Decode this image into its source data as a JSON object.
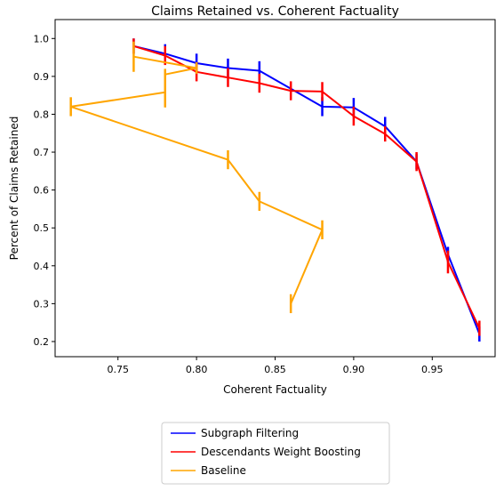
{
  "chart_data": {
    "type": "line",
    "title": "Claims Retained vs. Coherent Factuality",
    "xlabel": "Coherent Factuality",
    "ylabel": "Percent of Claims Retained",
    "xlim": [
      0.71,
      0.99
    ],
    "ylim": [
      0.16,
      1.05
    ],
    "xticks": [
      0.75,
      0.8,
      0.85,
      0.9,
      0.95
    ],
    "xtick_labels": [
      "0.75",
      "0.80",
      "0.85",
      "0.90",
      "0.95"
    ],
    "yticks": [
      0.2,
      0.3,
      0.4,
      0.5,
      0.6,
      0.7,
      0.8,
      0.9,
      1.0
    ],
    "ytick_labels": [
      "0.2",
      "0.3",
      "0.4",
      "0.5",
      "0.6",
      "0.7",
      "0.8",
      "0.9",
      "1.0"
    ],
    "grid": false,
    "legend_position": "below-center",
    "series": [
      {
        "name": "Subgraph Filtering",
        "color": "#0000ff",
        "x": [
          0.76,
          0.78,
          0.8,
          0.82,
          0.84,
          0.88,
          0.9,
          0.92,
          0.94,
          0.96,
          0.98
        ],
        "y": [
          0.98,
          0.96,
          0.935,
          0.922,
          0.915,
          0.82,
          0.818,
          0.768,
          0.675,
          0.43,
          0.22
        ],
        "err": [
          0.02,
          0.025,
          0.025,
          0.025,
          0.025,
          0.025,
          0.025,
          0.025,
          0.02,
          0.02,
          0.02
        ]
      },
      {
        "name": "Descendants Weight Boosting",
        "color": "#ff0000",
        "x": [
          0.76,
          0.78,
          0.8,
          0.82,
          0.84,
          0.86,
          0.88,
          0.9,
          0.92,
          0.94,
          0.96,
          0.98
        ],
        "y": [
          0.98,
          0.955,
          0.912,
          0.897,
          0.882,
          0.862,
          0.86,
          0.795,
          0.748,
          0.675,
          0.41,
          0.235
        ],
        "err": [
          0.02,
          0.025,
          0.025,
          0.025,
          0.025,
          0.025,
          0.025,
          0.025,
          0.02,
          0.025,
          0.03,
          0.02
        ]
      },
      {
        "name": "Baseline",
        "color": "#ffa500",
        "x": [
          0.76,
          0.78,
          0.8,
          0.78,
          0.72,
          0.82,
          0.84,
          0.88,
          0.86
        ],
        "y": [
          0.952,
          0.938,
          0.922,
          0.905,
          0.82,
          0.68,
          0.57,
          0.495,
          0.3
        ],
        "err": [
          0.01,
          0.01,
          0.01,
          0.01,
          0.02,
          0.02,
          0.02,
          0.025,
          0.02
        ],
        "path_x": [
          0.76,
          0.8,
          0.78,
          0.78,
          0.72,
          0.82,
          0.84,
          0.88,
          0.86
        ],
        "path_y": [
          0.952,
          0.922,
          0.905,
          0.858,
          0.82,
          0.68,
          0.57,
          0.495,
          0.3
        ],
        "err_path": [
          0.04,
          0.015,
          0.015,
          0.04,
          0.025,
          0.025,
          0.025,
          0.025,
          0.025
        ]
      }
    ]
  }
}
